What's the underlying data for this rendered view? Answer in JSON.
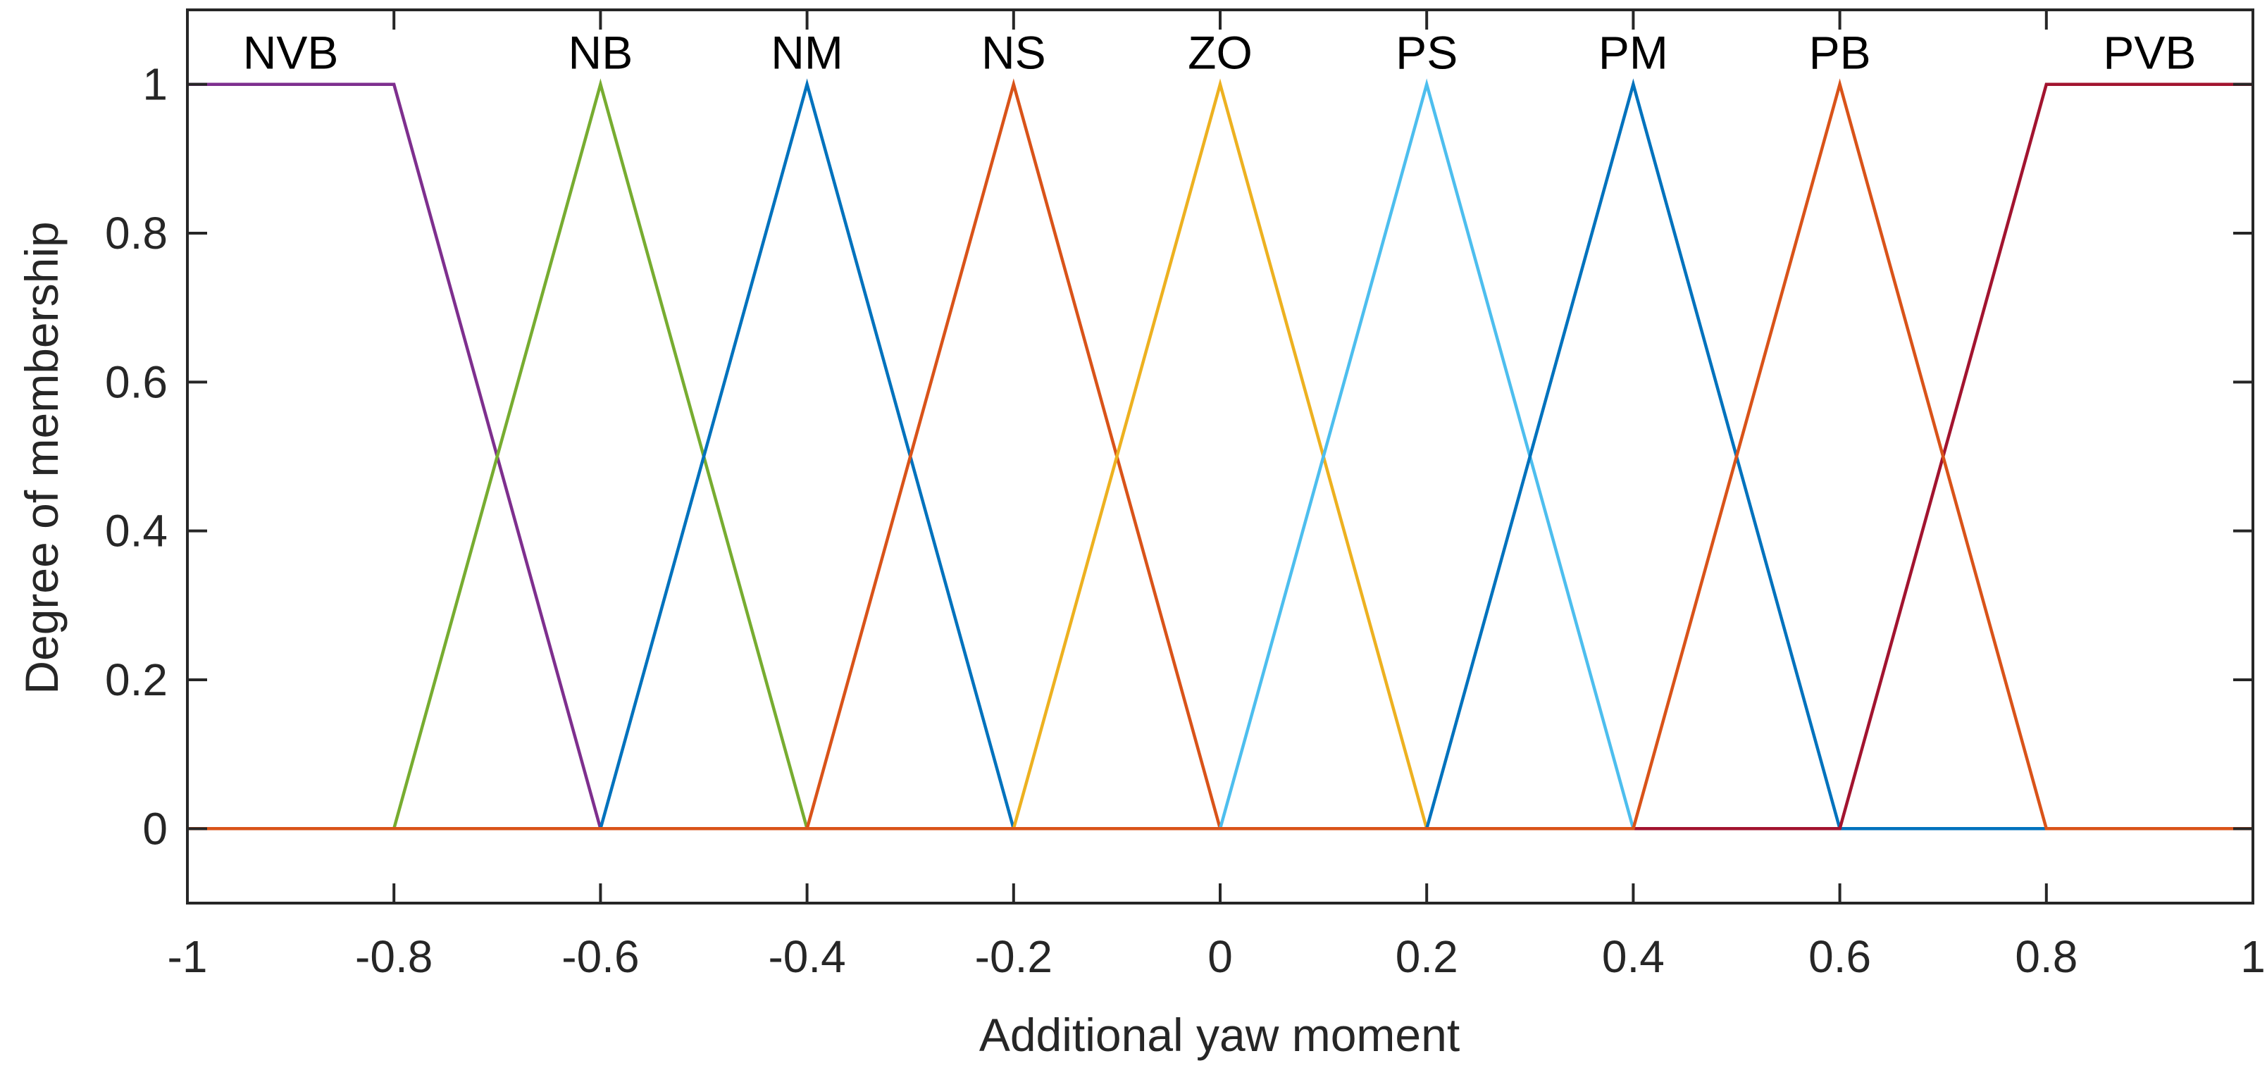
{
  "chart_data": {
    "type": "line",
    "title": "",
    "xlabel": "Additional yaw moment",
    "ylabel": "Degree of membership",
    "xlim": [
      -1,
      1
    ],
    "ylim": [
      -0.1,
      1.1
    ],
    "xticks": [
      -1,
      -0.8,
      -0.6,
      -0.4,
      -0.2,
      0,
      0.2,
      0.4,
      0.6,
      0.8,
      1
    ],
    "xtick_labels": [
      "-1",
      "-0.8",
      "-0.6",
      "-0.4",
      "-0.2",
      "0",
      "0.2",
      "0.4",
      "0.6",
      "0.8",
      "1"
    ],
    "yticks": [
      0,
      0.2,
      0.4,
      0.6,
      0.8,
      1
    ],
    "ytick_labels": [
      "0",
      "0.2",
      "0.4",
      "0.6",
      "0.8",
      "1"
    ],
    "grid": false,
    "box": true,
    "series": [
      {
        "name": "NVB",
        "color": "#7E2F8E",
        "label_x": -0.9,
        "x": [
          -1,
          -0.8,
          -0.6,
          1
        ],
        "y": [
          1,
          1,
          0,
          0
        ]
      },
      {
        "name": "NB",
        "color": "#77AC30",
        "label_x": -0.6,
        "x": [
          -1,
          -0.8,
          -0.6,
          -0.4,
          1
        ],
        "y": [
          0,
          0,
          1,
          0,
          0
        ]
      },
      {
        "name": "NM",
        "color": "#0072BD",
        "label_x": -0.4,
        "x": [
          -1,
          -0.6,
          -0.4,
          -0.2,
          1
        ],
        "y": [
          0,
          0,
          1,
          0,
          0
        ]
      },
      {
        "name": "NS",
        "color": "#D95319",
        "label_x": -0.2,
        "x": [
          -1,
          -0.4,
          -0.2,
          0,
          1
        ],
        "y": [
          0,
          0,
          1,
          0,
          0
        ]
      },
      {
        "name": "ZO",
        "color": "#EDB120",
        "label_x": 0,
        "x": [
          -1,
          -0.2,
          0,
          0.2,
          1
        ],
        "y": [
          0,
          0,
          1,
          0,
          0
        ]
      },
      {
        "name": "PS",
        "color": "#4DBEEE",
        "label_x": 0.2,
        "x": [
          -1,
          0,
          0.2,
          0.4,
          1
        ],
        "y": [
          0,
          0,
          1,
          0,
          0
        ]
      },
      {
        "name": "PM",
        "color": "#0072BD",
        "label_x": 0.4,
        "x": [
          -1,
          0.2,
          0.4,
          0.6,
          1
        ],
        "y": [
          0,
          0,
          1,
          0,
          0
        ]
      },
      {
        "name": "PVB",
        "color": "#A2142F",
        "label_x": 0.9,
        "x": [
          -1,
          0.6,
          0.8,
          1
        ],
        "y": [
          0,
          0,
          1,
          1
        ]
      },
      {
        "name": "PB",
        "color": "#D95319",
        "label_x": 0.6,
        "x": [
          -1,
          0.4,
          0.6,
          0.8,
          1
        ],
        "y": [
          0,
          0,
          1,
          0,
          0
        ]
      }
    ]
  }
}
